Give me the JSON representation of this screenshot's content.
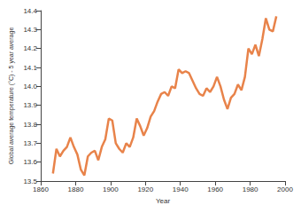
{
  "chart_data": {
    "type": "line",
    "x_label": "Year",
    "y_label": "Global average temperature (°C) - 5 year average",
    "x": [
      1867,
      1869,
      1871,
      1873,
      1875,
      1877,
      1879,
      1881,
      1883,
      1885,
      1887,
      1889,
      1891,
      1893,
      1895,
      1897,
      1899,
      1901,
      1903,
      1905,
      1907,
      1909,
      1911,
      1913,
      1915,
      1917,
      1919,
      1921,
      1923,
      1925,
      1927,
      1929,
      1931,
      1933,
      1935,
      1937,
      1939,
      1941,
      1943,
      1945,
      1947,
      1949,
      1951,
      1953,
      1955,
      1957,
      1959,
      1961,
      1963,
      1965,
      1967,
      1969,
      1971,
      1973,
      1975,
      1977,
      1979,
      1981,
      1983,
      1985,
      1987,
      1989,
      1991,
      1993,
      1995
    ],
    "values": [
      13.54,
      13.67,
      13.63,
      13.66,
      13.68,
      13.73,
      13.68,
      13.64,
      13.56,
      13.53,
      13.63,
      13.65,
      13.66,
      13.61,
      13.68,
      13.72,
      13.83,
      13.82,
      13.7,
      13.67,
      13.65,
      13.7,
      13.68,
      13.73,
      13.83,
      13.79,
      13.74,
      13.78,
      13.84,
      13.87,
      13.92,
      13.96,
      13.97,
      13.95,
      14.0,
      13.99,
      14.09,
      14.07,
      14.08,
      14.07,
      14.03,
      13.99,
      13.96,
      13.95,
      13.99,
      13.97,
      14.0,
      14.05,
      14.0,
      13.93,
      13.88,
      13.94,
      13.96,
      14.01,
      13.98,
      14.05,
      14.2,
      14.17,
      14.22,
      14.16,
      14.25,
      14.36,
      14.3,
      14.29,
      14.37
    ],
    "color": "#e8834a",
    "marker": "none",
    "line_style": "solid",
    "xlim": [
      1860,
      2000
    ],
    "xticks": [
      1860,
      1880,
      1900,
      1920,
      1940,
      1960,
      1980,
      2000
    ],
    "ylim": [
      13.5,
      14.4
    ],
    "yticks": [
      13.5,
      13.6,
      13.7,
      13.8,
      13.9,
      {
        "value": 14,
        "label": "14.0"
      },
      14.1,
      14.2,
      14.3,
      14.4
    ],
    "grid": false
  }
}
